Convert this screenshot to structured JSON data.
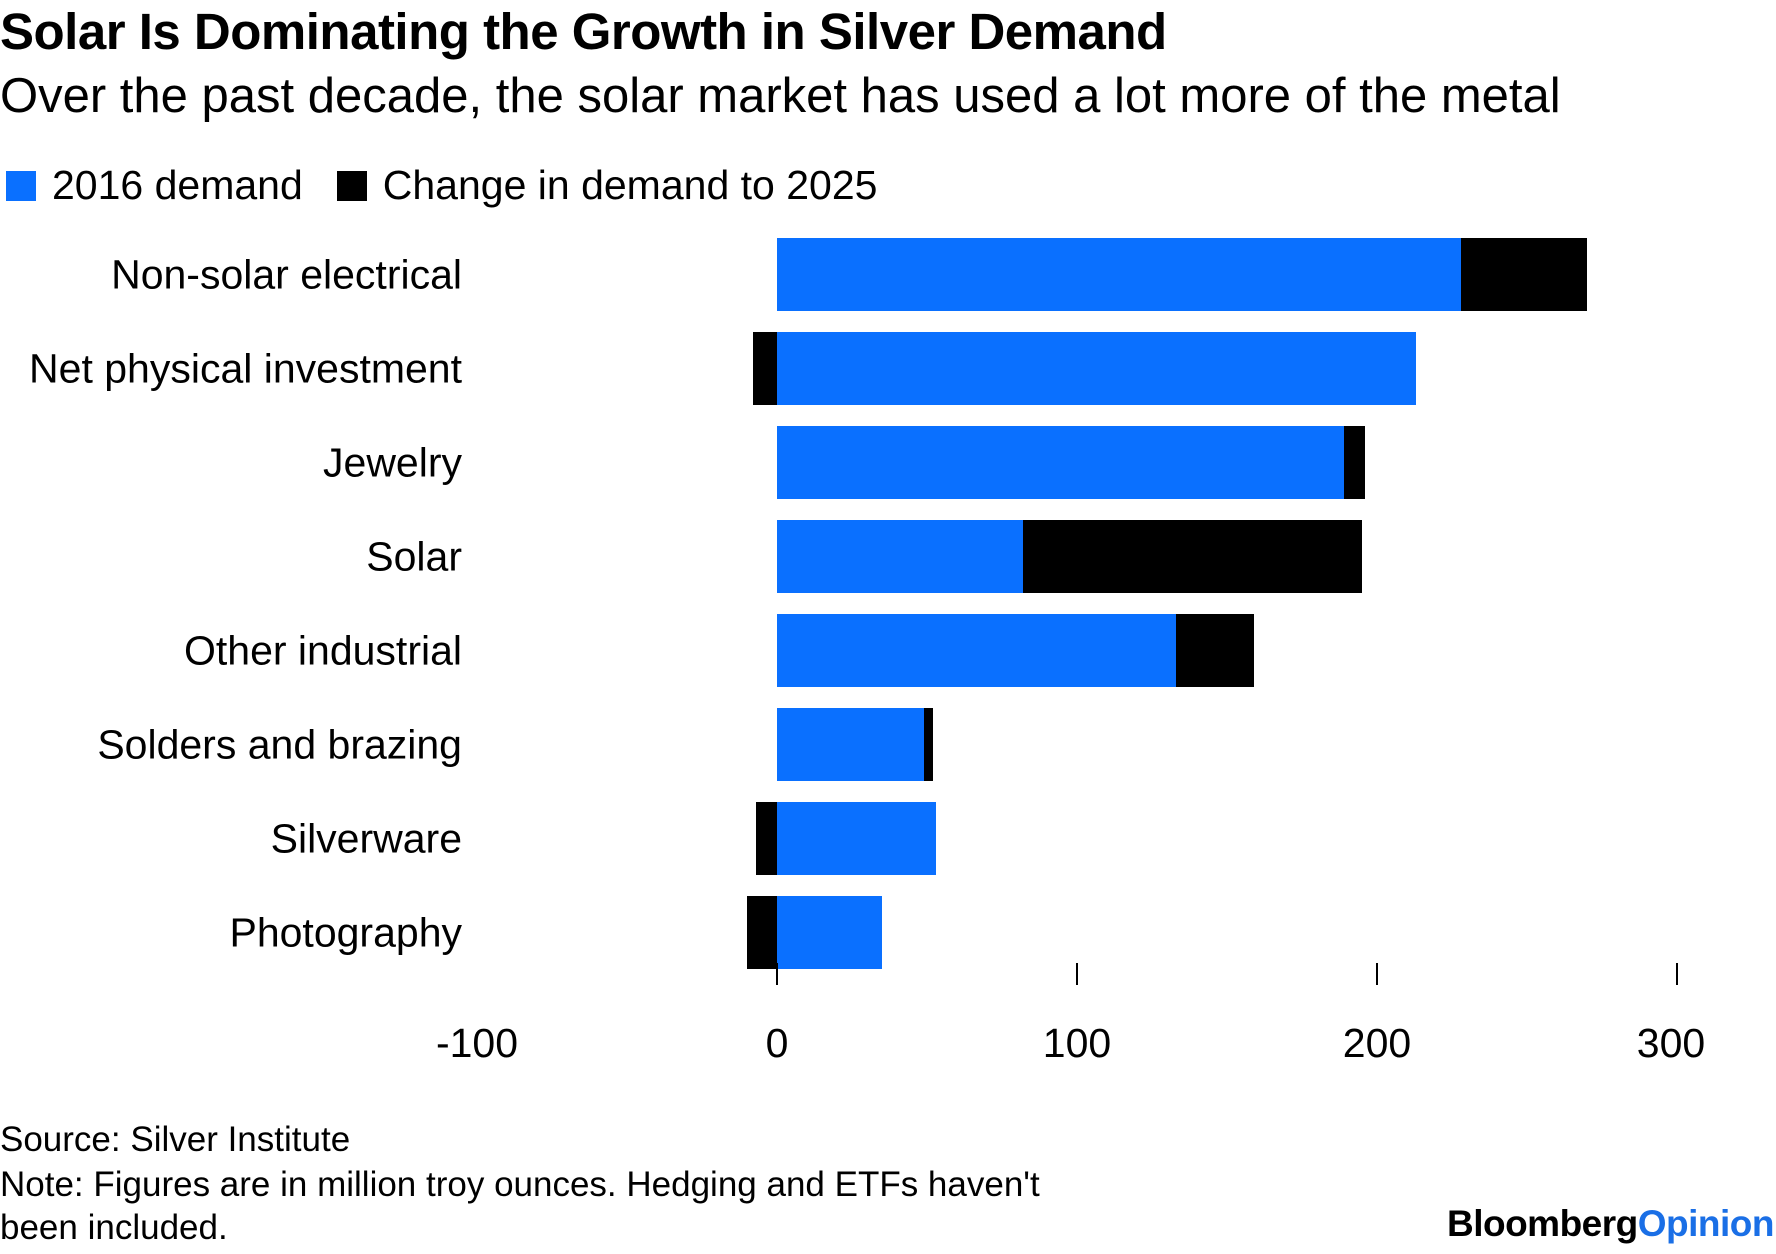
{
  "chart_data": {
    "type": "bar",
    "orientation": "horizontal",
    "stacked": true,
    "title": "Solar Is Dominating the Growth in Silver Demand",
    "subtitle": "Over the past decade, the solar market has used a lot more of the metal",
    "categories": [
      "Non-solar electrical",
      "Net physical investment",
      "Jewelry",
      "Solar",
      "Other industrial",
      "Solders and brazing",
      "Silverware",
      "Photography"
    ],
    "series": [
      {
        "name": "2016 demand",
        "color": "#0a70ff",
        "values": [
          228,
          213,
          189,
          82,
          133,
          49,
          53,
          35
        ]
      },
      {
        "name": "Change in demand to 2025",
        "color": "#000000",
        "values": [
          42,
          -8,
          7,
          113,
          26,
          3,
          -7,
          -10
        ]
      }
    ],
    "xlim": [
      -100,
      300
    ],
    "xticks": [
      -100,
      0,
      100,
      200,
      300
    ],
    "tick_labels": [
      "-100",
      "0",
      "100",
      "200",
      "300"
    ],
    "xlabel": "",
    "ylabel": "",
    "legend_position": "top-left"
  },
  "legend": {
    "item1": "2016 demand",
    "item2": "Change in demand to 2025"
  },
  "footer": {
    "source": "Source: Silver Institute",
    "note_line1": "Note: Figures are in million troy ounces. Hedging and ETFs haven't",
    "note_line2": "been included."
  },
  "brand": {
    "name": "Bloomberg",
    "section": "Opinion"
  }
}
